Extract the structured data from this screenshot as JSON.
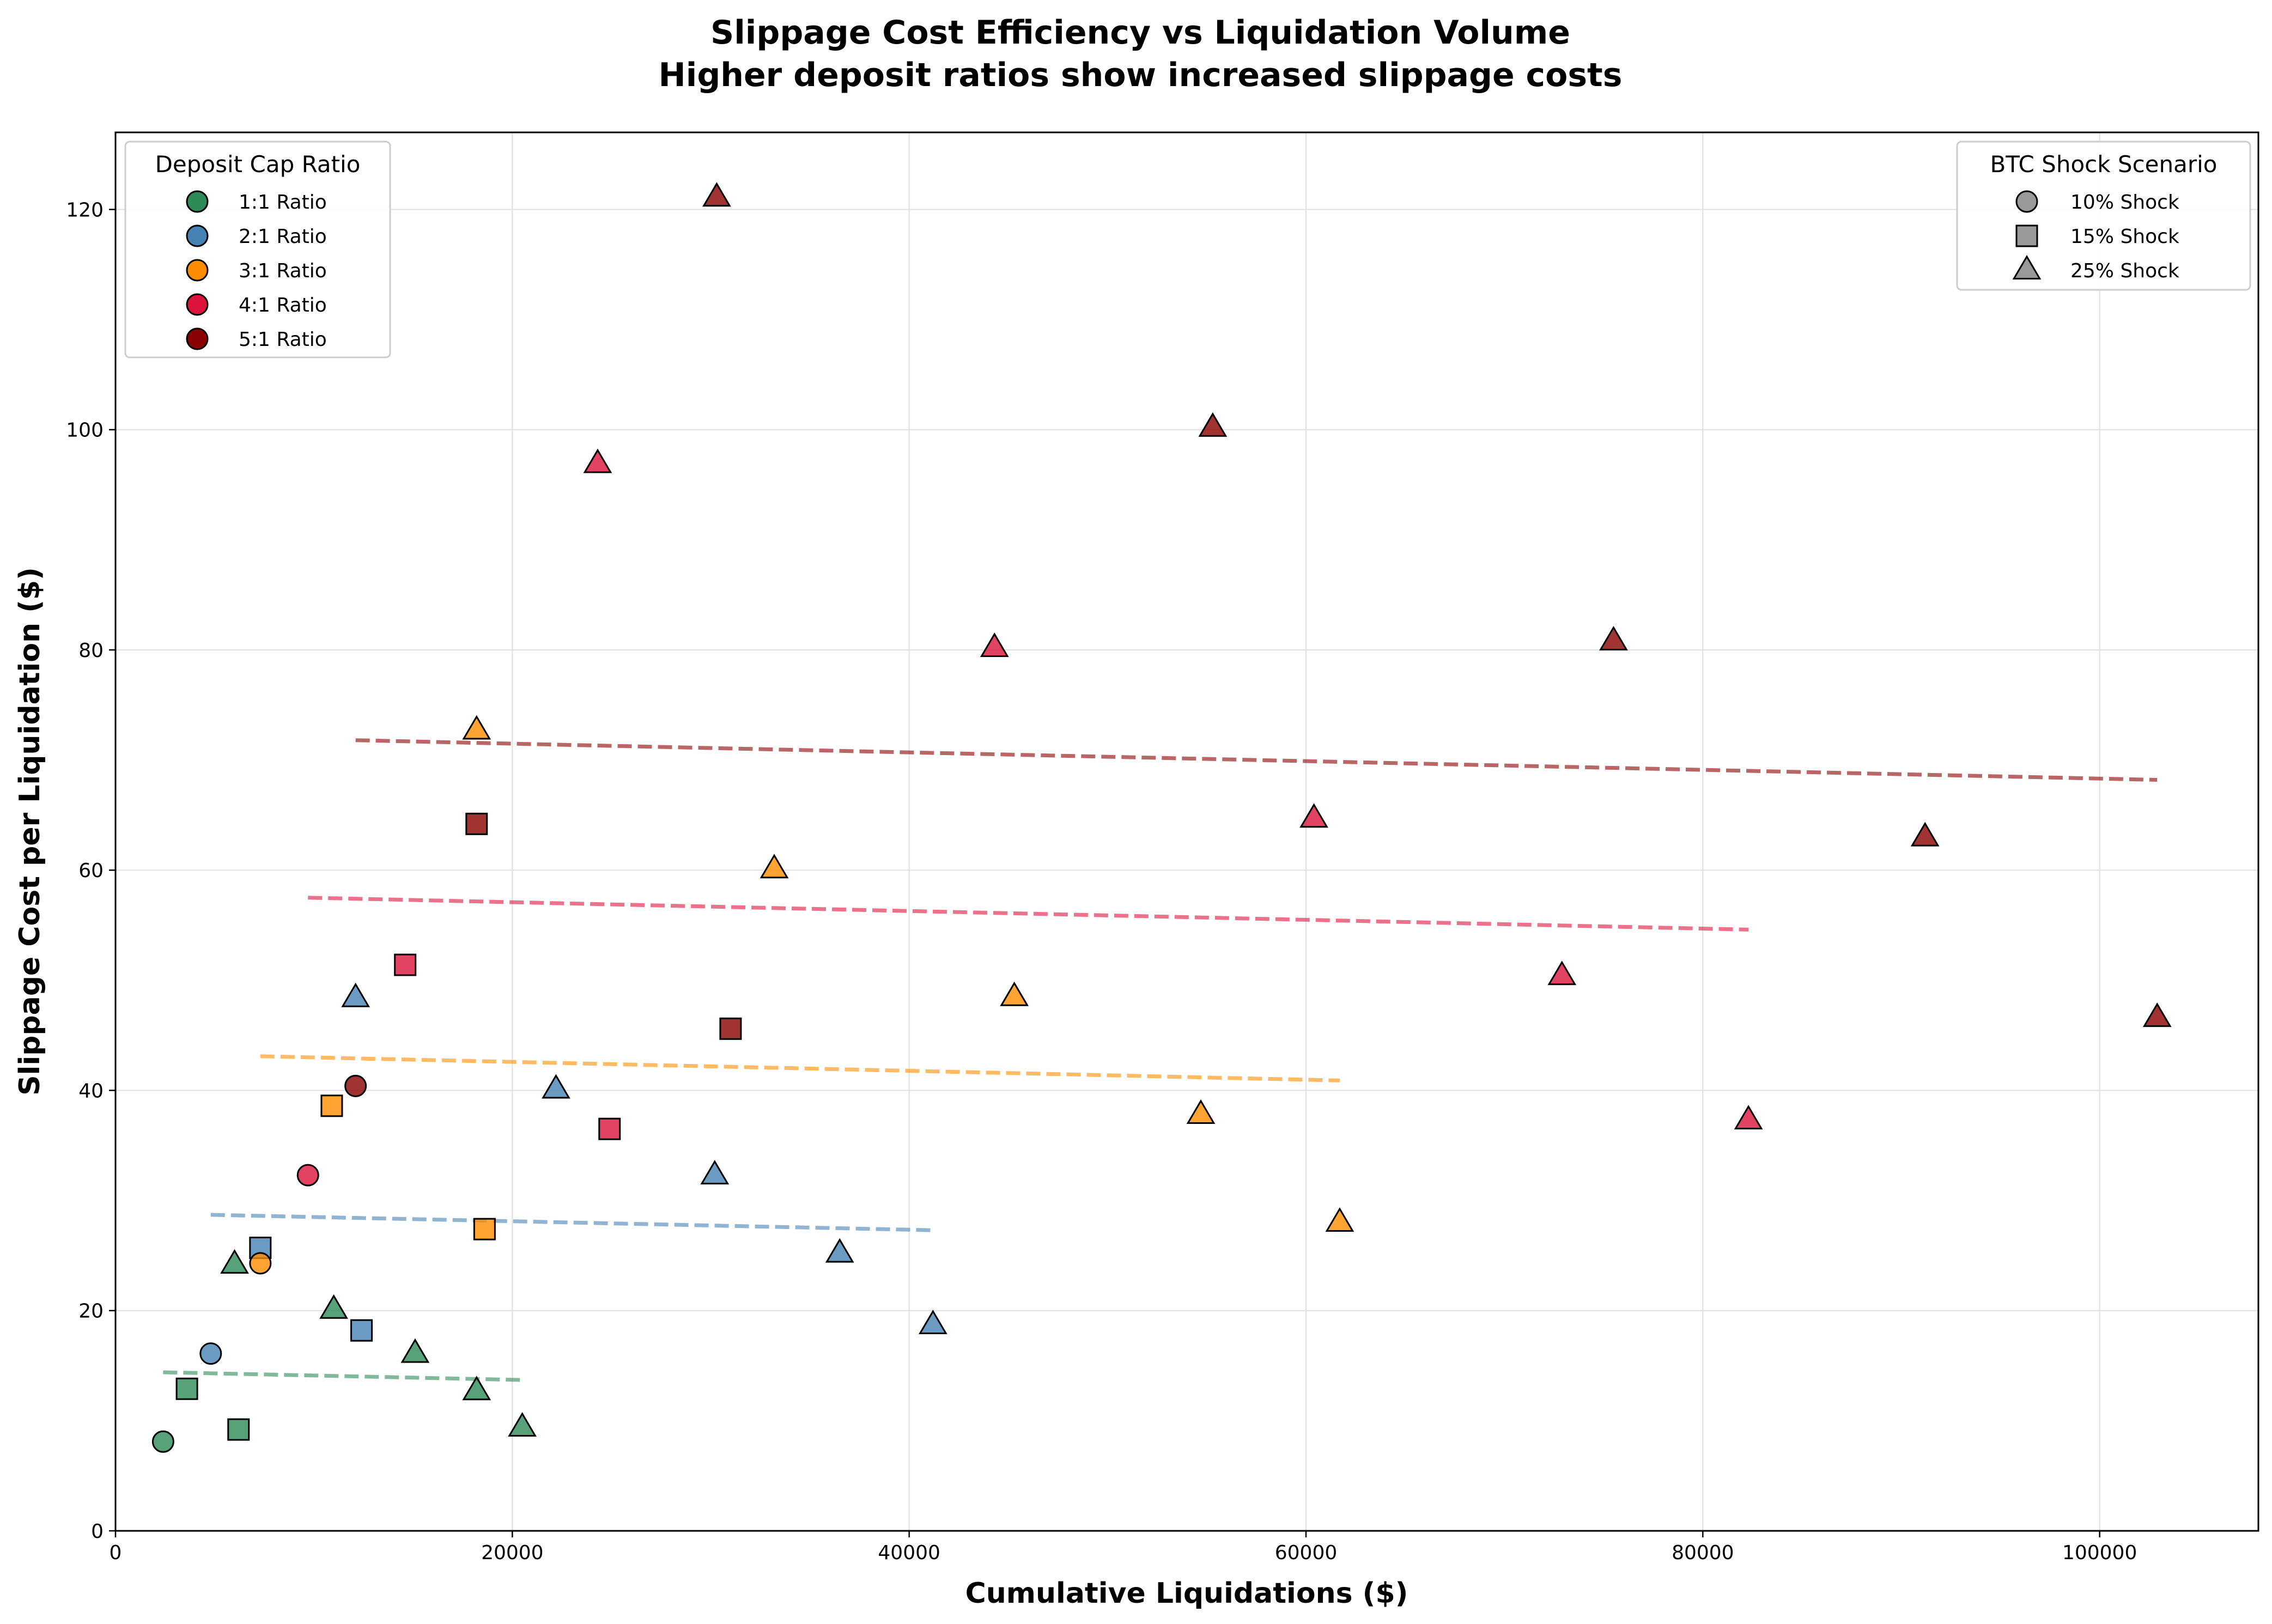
{
  "chart_data": {
    "type": "scatter",
    "title": "Slippage Cost Efficiency vs Liquidation Volume",
    "subtitle": "Higher deposit ratios show increased slippage costs",
    "xlabel": "Cumulative Liquidations ($)",
    "ylabel": "Slippage Cost per Liquidation ($)",
    "xlim": [
      0,
      108000
    ],
    "ylim": [
      0,
      127
    ],
    "x_ticks": [
      0,
      20000,
      40000,
      60000,
      80000,
      100000
    ],
    "y_ticks": [
      0,
      20,
      40,
      60,
      80,
      100,
      120
    ],
    "x_tick_labels": [
      "0",
      "20000",
      "40000",
      "60000",
      "80000",
      "100000"
    ],
    "y_tick_labels": [
      "0",
      "20",
      "40",
      "60",
      "80",
      "100",
      "120"
    ],
    "grid": true,
    "legend_color": {
      "title": "Deposit Cap Ratio",
      "placement": "top-left",
      "items": [
        {
          "label": "1:1 Ratio",
          "color": "#2e8b57"
        },
        {
          "label": "2:1 Ratio",
          "color": "#4682b4"
        },
        {
          "label": "3:1 Ratio",
          "color": "#ff8c00"
        },
        {
          "label": "4:1 Ratio",
          "color": "#dc143c"
        },
        {
          "label": "5:1 Ratio",
          "color": "#8b0000"
        }
      ]
    },
    "legend_marker": {
      "title": "BTC Shock Scenario",
      "placement": "top-right",
      "items": [
        {
          "label": "10% Shock",
          "marker": "circle"
        },
        {
          "label": "15% Shock",
          "marker": "square"
        },
        {
          "label": "25% Shock",
          "marker": "triangle"
        }
      ]
    },
    "series": [
      {
        "group": "1:1 Ratio",
        "color": "#2e8b57",
        "points": [
          {
            "x": 2400,
            "y": 8.1,
            "shock": "10%"
          },
          {
            "x": 3600,
            "y": 12.9,
            "shock": "15%"
          },
          {
            "x": 6200,
            "y": 9.2,
            "shock": "15%"
          },
          {
            "x": 6000,
            "y": 24.2,
            "shock": "25%"
          },
          {
            "x": 11000,
            "y": 20.1,
            "shock": "25%"
          },
          {
            "x": 15100,
            "y": 16.1,
            "shock": "25%"
          },
          {
            "x": 18200,
            "y": 12.7,
            "shock": "25%"
          },
          {
            "x": 20500,
            "y": 9.4,
            "shock": "25%"
          }
        ],
        "trend": {
          "x": [
            2400,
            20500
          ],
          "y": [
            14.4,
            13.7
          ]
        }
      },
      {
        "group": "2:1 Ratio",
        "color": "#4682b4",
        "points": [
          {
            "x": 4800,
            "y": 16.1,
            "shock": "10%"
          },
          {
            "x": 7300,
            "y": 25.7,
            "shock": "15%"
          },
          {
            "x": 12400,
            "y": 18.2,
            "shock": "15%"
          },
          {
            "x": 12100,
            "y": 48.4,
            "shock": "25%"
          },
          {
            "x": 22200,
            "y": 40.1,
            "shock": "25%"
          },
          {
            "x": 30200,
            "y": 32.3,
            "shock": "25%"
          },
          {
            "x": 36500,
            "y": 25.2,
            "shock": "25%"
          },
          {
            "x": 41200,
            "y": 18.7,
            "shock": "25%"
          }
        ],
        "trend": {
          "x": [
            4800,
            41200
          ],
          "y": [
            28.7,
            27.3
          ]
        }
      },
      {
        "group": "3:1 Ratio",
        "color": "#ff8c00",
        "points": [
          {
            "x": 7300,
            "y": 24.3,
            "shock": "10%"
          },
          {
            "x": 10900,
            "y": 38.6,
            "shock": "15%"
          },
          {
            "x": 18600,
            "y": 27.4,
            "shock": "15%"
          },
          {
            "x": 18200,
            "y": 72.7,
            "shock": "25%"
          },
          {
            "x": 33200,
            "y": 60.1,
            "shock": "25%"
          },
          {
            "x": 45300,
            "y": 48.5,
            "shock": "25%"
          },
          {
            "x": 54700,
            "y": 37.8,
            "shock": "25%"
          },
          {
            "x": 61700,
            "y": 28.0,
            "shock": "25%"
          }
        ],
        "trend": {
          "x": [
            7300,
            61700
          ],
          "y": [
            43.1,
            40.9
          ]
        }
      },
      {
        "group": "4:1 Ratio",
        "color": "#dc143c",
        "points": [
          {
            "x": 9700,
            "y": 32.3,
            "shock": "10%"
          },
          {
            "x": 14600,
            "y": 51.4,
            "shock": "15%"
          },
          {
            "x": 24900,
            "y": 36.5,
            "shock": "15%"
          },
          {
            "x": 24300,
            "y": 96.9,
            "shock": "25%"
          },
          {
            "x": 44300,
            "y": 80.2,
            "shock": "25%"
          },
          {
            "x": 60400,
            "y": 64.7,
            "shock": "25%"
          },
          {
            "x": 72900,
            "y": 50.4,
            "shock": "25%"
          },
          {
            "x": 82300,
            "y": 37.3,
            "shock": "25%"
          }
        ],
        "trend": {
          "x": [
            9700,
            82300
          ],
          "y": [
            57.5,
            54.6
          ]
        }
      },
      {
        "group": "5:1 Ratio",
        "color": "#8b0000",
        "points": [
          {
            "x": 12100,
            "y": 40.4,
            "shock": "10%"
          },
          {
            "x": 18200,
            "y": 64.2,
            "shock": "15%"
          },
          {
            "x": 31000,
            "y": 45.6,
            "shock": "15%"
          },
          {
            "x": 30300,
            "y": 121.1,
            "shock": "25%"
          },
          {
            "x": 55300,
            "y": 100.2,
            "shock": "25%"
          },
          {
            "x": 75500,
            "y": 80.8,
            "shock": "25%"
          },
          {
            "x": 91200,
            "y": 63.0,
            "shock": "25%"
          },
          {
            "x": 102900,
            "y": 46.6,
            "shock": "25%"
          }
        ],
        "trend": {
          "x": [
            12100,
            102900
          ],
          "y": [
            71.8,
            68.2
          ]
        }
      }
    ]
  }
}
